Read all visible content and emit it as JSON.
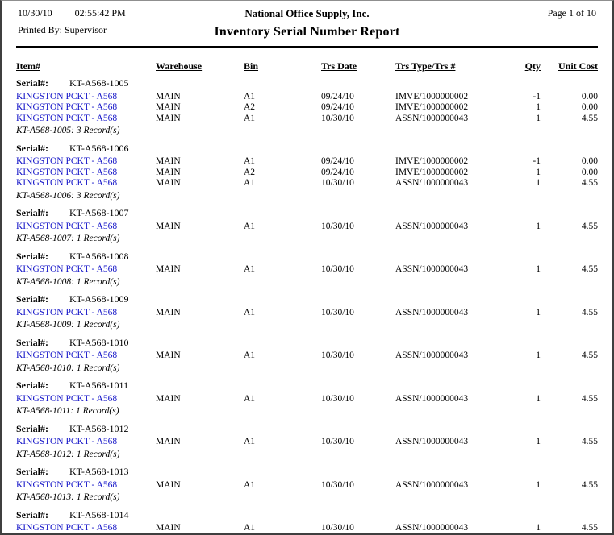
{
  "colors": {
    "link": "#1414c8",
    "text": "#000000",
    "rule": "#000000"
  },
  "header": {
    "date": "10/30/10",
    "time": "02:55:42 PM",
    "printed_by": "Printed By: Supervisor",
    "company": "National Office Supply, Inc.",
    "report_title": "Inventory Serial Number Report",
    "page_info": "Page 1 of 10"
  },
  "table": {
    "serial_label": "Serial#:",
    "columns": [
      "Item#",
      "Warehouse",
      "Bin",
      "Trs Date",
      "Trs Type/Trs #",
      "Qty",
      "Unit Cost"
    ],
    "groups": [
      {
        "serial": "KT-A568-1005",
        "rows": [
          [
            "KINGSTON PCKT - A568",
            "MAIN",
            "A1",
            "09/24/10",
            "IMVE/1000000002",
            "-1",
            "0.00"
          ],
          [
            "KINGSTON PCKT - A568",
            "MAIN",
            "A2",
            "09/24/10",
            "IMVE/1000000002",
            "1",
            "0.00"
          ],
          [
            "KINGSTON PCKT - A568",
            "MAIN",
            "A1",
            "10/30/10",
            "ASSN/1000000043",
            "1",
            "4.55"
          ]
        ],
        "summary": "KT-A568-1005: 3 Record(s)"
      },
      {
        "serial": "KT-A568-1006",
        "rows": [
          [
            "KINGSTON PCKT - A568",
            "MAIN",
            "A1",
            "09/24/10",
            "IMVE/1000000002",
            "-1",
            "0.00"
          ],
          [
            "KINGSTON PCKT - A568",
            "MAIN",
            "A2",
            "09/24/10",
            "IMVE/1000000002",
            "1",
            "0.00"
          ],
          [
            "KINGSTON PCKT - A568",
            "MAIN",
            "A1",
            "10/30/10",
            "ASSN/1000000043",
            "1",
            "4.55"
          ]
        ],
        "summary": "KT-A568-1006: 3 Record(s)"
      },
      {
        "serial": "KT-A568-1007",
        "rows": [
          [
            "KINGSTON PCKT - A568",
            "MAIN",
            "A1",
            "10/30/10",
            "ASSN/1000000043",
            "1",
            "4.55"
          ]
        ],
        "summary": "KT-A568-1007: 1 Record(s)"
      },
      {
        "serial": "KT-A568-1008",
        "rows": [
          [
            "KINGSTON PCKT - A568",
            "MAIN",
            "A1",
            "10/30/10",
            "ASSN/1000000043",
            "1",
            "4.55"
          ]
        ],
        "summary": "KT-A568-1008: 1 Record(s)"
      },
      {
        "serial": "KT-A568-1009",
        "rows": [
          [
            "KINGSTON PCKT - A568",
            "MAIN",
            "A1",
            "10/30/10",
            "ASSN/1000000043",
            "1",
            "4.55"
          ]
        ],
        "summary": "KT-A568-1009: 1 Record(s)"
      },
      {
        "serial": "KT-A568-1010",
        "rows": [
          [
            "KINGSTON PCKT - A568",
            "MAIN",
            "A1",
            "10/30/10",
            "ASSN/1000000043",
            "1",
            "4.55"
          ]
        ],
        "summary": "KT-A568-1010: 1 Record(s)"
      },
      {
        "serial": "KT-A568-1011",
        "rows": [
          [
            "KINGSTON PCKT - A568",
            "MAIN",
            "A1",
            "10/30/10",
            "ASSN/1000000043",
            "1",
            "4.55"
          ]
        ],
        "summary": "KT-A568-1011: 1 Record(s)"
      },
      {
        "serial": "KT-A568-1012",
        "rows": [
          [
            "KINGSTON PCKT - A568",
            "MAIN",
            "A1",
            "10/30/10",
            "ASSN/1000000043",
            "1",
            "4.55"
          ]
        ],
        "summary": "KT-A568-1012: 1 Record(s)"
      },
      {
        "serial": "KT-A568-1013",
        "rows": [
          [
            "KINGSTON PCKT - A568",
            "MAIN",
            "A1",
            "10/30/10",
            "ASSN/1000000043",
            "1",
            "4.55"
          ]
        ],
        "summary": "KT-A568-1013: 1 Record(s)"
      },
      {
        "serial": "KT-A568-1014",
        "rows": [
          [
            "KINGSTON PCKT - A568",
            "MAIN",
            "A1",
            "10/30/10",
            "ASSN/1000000043",
            "1",
            "4.55"
          ]
        ],
        "summary": ""
      }
    ]
  }
}
